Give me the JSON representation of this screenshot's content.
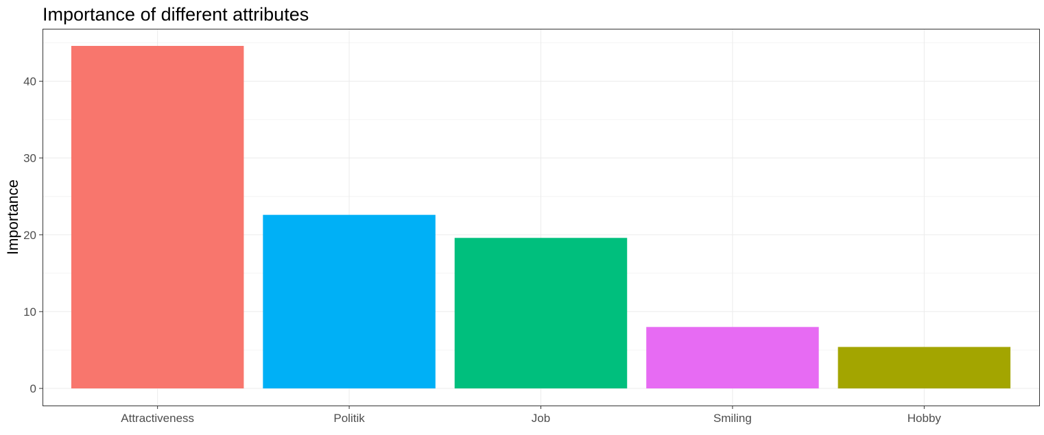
{
  "chart_data": {
    "type": "bar",
    "title": "Importance of different attributes",
    "xlabel": "",
    "ylabel": "Importance",
    "categories": [
      "Attractiveness",
      "Politik",
      "Job",
      "Smiling",
      "Hobby"
    ],
    "values": [
      44.6,
      22.6,
      19.6,
      8.0,
      5.4
    ],
    "colors": [
      "#F8766D",
      "#00B0F6",
      "#00BF7D",
      "#E76BF3",
      "#A3A500"
    ],
    "yticks": [
      0,
      10,
      20,
      30,
      40
    ],
    "ylim": [
      -2.23,
      46.83
    ],
    "grid": true,
    "legend": "none"
  }
}
